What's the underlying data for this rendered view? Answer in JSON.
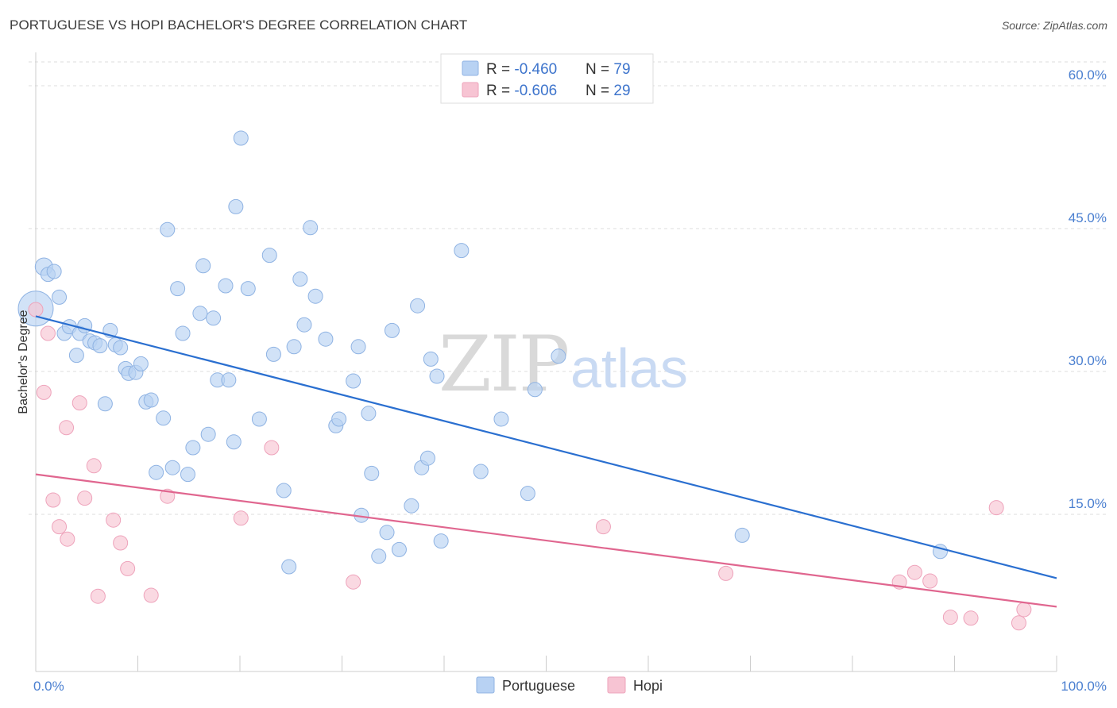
{
  "title": "PORTUGUESE VS HOPI BACHELOR'S DEGREE CORRELATION CHART",
  "source": "Source: ZipAtlas.com",
  "watermark": {
    "zip": "ZIP",
    "atlas": "atlas"
  },
  "colors": {
    "portuguese_fill": "#b8d2f3",
    "portuguese_stroke": "#8fb3e3",
    "portuguese_line": "#2a6fd0",
    "hopi_fill": "#f7c4d3",
    "hopi_stroke": "#eea3bb",
    "hopi_line": "#e0668f",
    "tick_text": "#4a7fd0",
    "grid": "#dcdcdc"
  },
  "legend": [
    {
      "r_label": "R = ",
      "r_value": "-0.460",
      "n_label": "N = ",
      "n_value": "79"
    },
    {
      "r_label": "R = ",
      "r_value": "-0.606",
      "n_label": "N = ",
      "n_value": "29"
    }
  ],
  "chart_data": {
    "type": "scatter",
    "title": "PORTUGUESE VS HOPI BACHELOR'S DEGREE CORRELATION CHART",
    "xlabel": "",
    "ylabel": "Bachelor's Degree",
    "xlim": [
      0,
      100
    ],
    "ylim": [
      0,
      63
    ],
    "x_tick_labels": [
      {
        "value": 0,
        "label": "0.0%"
      },
      {
        "value": 100,
        "label": "100.0%"
      }
    ],
    "y_ticks": [
      {
        "value": 15,
        "label": "15.0%"
      },
      {
        "value": 30,
        "label": "30.0%"
      },
      {
        "value": 45,
        "label": "45.0%"
      },
      {
        "value": 60,
        "label": "60.0%"
      }
    ],
    "grid": "horizontal dashed",
    "legend_position": "top-center",
    "series": [
      {
        "name": "Portuguese",
        "r": -0.46,
        "n": 79,
        "trend": [
          [
            0,
            35.8
          ],
          [
            100,
            8.3
          ]
        ],
        "points": [
          [
            0.0,
            36.6,
            22
          ],
          [
            0.8,
            41.0,
            11
          ],
          [
            1.2,
            40.2,
            9
          ],
          [
            1.8,
            40.5,
            9
          ],
          [
            2.3,
            37.8,
            9
          ],
          [
            2.8,
            34.0,
            9
          ],
          [
            3.3,
            34.7,
            9
          ],
          [
            4.0,
            31.7,
            9
          ],
          [
            4.3,
            34.0,
            9
          ],
          [
            4.8,
            34.8,
            9
          ],
          [
            5.3,
            33.2,
            9
          ],
          [
            5.8,
            33.0,
            9
          ],
          [
            6.3,
            32.7,
            9
          ],
          [
            6.8,
            26.6,
            9
          ],
          [
            7.3,
            34.3,
            9
          ],
          [
            7.8,
            32.8,
            9
          ],
          [
            8.3,
            32.5,
            9
          ],
          [
            8.8,
            30.3,
            9
          ],
          [
            9.1,
            29.8,
            9
          ],
          [
            9.8,
            29.9,
            9
          ],
          [
            10.3,
            30.8,
            9
          ],
          [
            10.8,
            26.8,
            9
          ],
          [
            11.3,
            27.0,
            9
          ],
          [
            11.8,
            19.4,
            9
          ],
          [
            12.5,
            25.1,
            9
          ],
          [
            12.9,
            44.9,
            9
          ],
          [
            13.4,
            19.9,
            9
          ],
          [
            13.9,
            38.7,
            9
          ],
          [
            14.4,
            34.0,
            9
          ],
          [
            14.9,
            19.2,
            9
          ],
          [
            15.4,
            22.0,
            9
          ],
          [
            16.1,
            36.1,
            9
          ],
          [
            16.4,
            41.1,
            9
          ],
          [
            16.9,
            23.4,
            9
          ],
          [
            17.4,
            35.6,
            9
          ],
          [
            17.8,
            29.1,
            9
          ],
          [
            18.6,
            39.0,
            9
          ],
          [
            18.9,
            29.1,
            9
          ],
          [
            19.4,
            22.6,
            9
          ],
          [
            19.6,
            47.3,
            9
          ],
          [
            20.1,
            54.5,
            9
          ],
          [
            20.8,
            38.7,
            9
          ],
          [
            21.9,
            25.0,
            9
          ],
          [
            22.9,
            42.2,
            9
          ],
          [
            23.3,
            31.8,
            9
          ],
          [
            24.3,
            17.5,
            9
          ],
          [
            24.8,
            9.5,
            9
          ],
          [
            25.3,
            32.6,
            9
          ],
          [
            25.9,
            39.7,
            9
          ],
          [
            26.3,
            34.9,
            9
          ],
          [
            26.9,
            45.1,
            9
          ],
          [
            27.4,
            37.9,
            9
          ],
          [
            28.4,
            33.4,
            9
          ],
          [
            29.4,
            24.3,
            9
          ],
          [
            29.7,
            25.0,
            9
          ],
          [
            31.1,
            29.0,
            9
          ],
          [
            31.6,
            32.6,
            9
          ],
          [
            31.9,
            14.9,
            9
          ],
          [
            32.6,
            25.6,
            9
          ],
          [
            32.9,
            19.3,
            9
          ],
          [
            33.6,
            10.6,
            9
          ],
          [
            34.4,
            13.1,
            9
          ],
          [
            34.9,
            34.3,
            9
          ],
          [
            35.6,
            11.3,
            9
          ],
          [
            36.8,
            15.9,
            9
          ],
          [
            37.4,
            36.9,
            9
          ],
          [
            37.8,
            19.9,
            9
          ],
          [
            38.4,
            20.9,
            9
          ],
          [
            38.7,
            31.3,
            9
          ],
          [
            39.3,
            29.5,
            9
          ],
          [
            39.7,
            12.2,
            9
          ],
          [
            41.7,
            42.7,
            9
          ],
          [
            43.6,
            19.5,
            9
          ],
          [
            45.6,
            25.0,
            9
          ],
          [
            48.2,
            17.2,
            9
          ],
          [
            48.9,
            28.1,
            9
          ],
          [
            51.2,
            31.6,
            9
          ],
          [
            69.2,
            12.8,
            9
          ],
          [
            88.6,
            11.1,
            9
          ]
        ]
      },
      {
        "name": "Hopi",
        "r": -0.606,
        "n": 29,
        "trend": [
          [
            0,
            19.2
          ],
          [
            100,
            5.3
          ]
        ],
        "points": [
          [
            0.0,
            36.5,
            9
          ],
          [
            0.8,
            27.8,
            9
          ],
          [
            1.2,
            34.0,
            9
          ],
          [
            1.7,
            16.5,
            9
          ],
          [
            2.3,
            13.7,
            9
          ],
          [
            3.1,
            12.4,
            9
          ],
          [
            3.0,
            24.1,
            9
          ],
          [
            4.3,
            26.7,
            9
          ],
          [
            4.8,
            16.7,
            9
          ],
          [
            5.7,
            20.1,
            9
          ],
          [
            6.1,
            6.4,
            9
          ],
          [
            7.6,
            14.4,
            9
          ],
          [
            8.3,
            12.0,
            9
          ],
          [
            9.0,
            9.3,
            9
          ],
          [
            11.3,
            6.5,
            9
          ],
          [
            12.9,
            16.9,
            9
          ],
          [
            20.1,
            14.6,
            9
          ],
          [
            23.1,
            22.0,
            9
          ],
          [
            31.1,
            7.9,
            9
          ],
          [
            55.6,
            13.7,
            9
          ],
          [
            67.6,
            8.8,
            9
          ],
          [
            84.6,
            7.9,
            9
          ],
          [
            86.1,
            8.9,
            9
          ],
          [
            87.6,
            8.0,
            9
          ],
          [
            89.6,
            4.2,
            9
          ],
          [
            91.6,
            4.1,
            9
          ],
          [
            94.1,
            15.7,
            9
          ],
          [
            96.3,
            3.6,
            9
          ],
          [
            96.8,
            5.0,
            9
          ]
        ]
      }
    ]
  }
}
